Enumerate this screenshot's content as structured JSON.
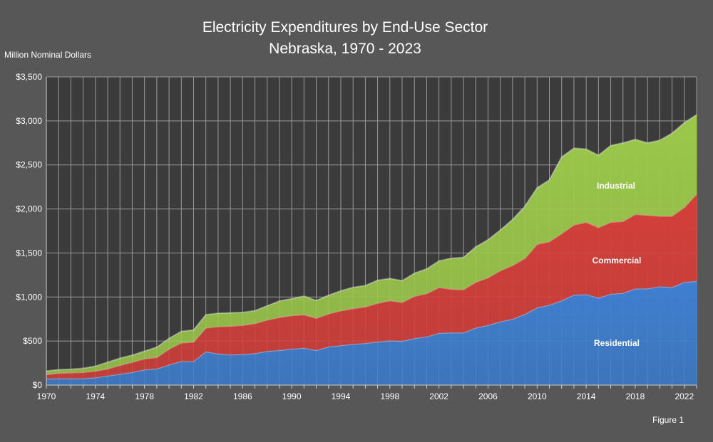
{
  "chart_data": {
    "type": "area",
    "stacked": true,
    "title": "Electricity Expenditures by End-Use Sector",
    "subtitle": "Nebraska, 1970 - 2023",
    "ylabel": "Million Nominal Dollars",
    "xlabel": "",
    "xlim": [
      1970,
      2023
    ],
    "ylim": [
      0,
      3500
    ],
    "x_ticks": [
      "1970",
      "1974",
      "1978",
      "1982",
      "1986",
      "1990",
      "1994",
      "1998",
      "2002",
      "2006",
      "2010",
      "2014",
      "2018",
      "2022"
    ],
    "y_ticks": [
      "$0",
      "$500",
      "$1,000",
      "$1,500",
      "$2,000",
      "$2,500",
      "$3,000",
      "$3,500"
    ],
    "grid": true,
    "legend": "labels inside areas",
    "footnote": "Figure 1",
    "x": [
      1970,
      1971,
      1972,
      1973,
      1974,
      1975,
      1976,
      1977,
      1978,
      1979,
      1980,
      1981,
      1982,
      1983,
      1984,
      1985,
      1986,
      1987,
      1988,
      1989,
      1990,
      1991,
      1992,
      1993,
      1994,
      1995,
      1996,
      1997,
      1998,
      1999,
      2000,
      2001,
      2002,
      2003,
      2004,
      2005,
      2006,
      2007,
      2008,
      2009,
      2010,
      2011,
      2012,
      2013,
      2014,
      2015,
      2016,
      2017,
      2018,
      2019,
      2020,
      2021,
      2022,
      2023
    ],
    "series": [
      {
        "name": "Residential",
        "color": "#3f7fd0",
        "values": [
          70,
          75,
          75,
          75,
          85,
          105,
          125,
          145,
          175,
          185,
          230,
          270,
          270,
          380,
          355,
          345,
          350,
          360,
          385,
          395,
          410,
          420,
          395,
          435,
          450,
          465,
          475,
          490,
          505,
          500,
          530,
          550,
          590,
          595,
          595,
          650,
          680,
          720,
          750,
          805,
          880,
          910,
          960,
          1025,
          1030,
          990,
          1035,
          1045,
          1095,
          1095,
          1120,
          1110,
          1170,
          1180
        ]
      },
      {
        "name": "Commercial",
        "color": "#d43f3a",
        "values": [
          50,
          60,
          65,
          70,
          75,
          80,
          100,
          115,
          125,
          130,
          180,
          210,
          220,
          270,
          310,
          325,
          330,
          340,
          355,
          375,
          380,
          380,
          365,
          375,
          395,
          405,
          415,
          440,
          455,
          440,
          480,
          490,
          520,
          495,
          490,
          520,
          540,
          580,
          610,
          635,
          720,
          720,
          760,
          795,
          820,
          800,
          815,
          815,
          845,
          835,
          800,
          810,
          850,
          990
        ]
      },
      {
        "name": "Industrial",
        "color": "#9bc84a",
        "values": [
          40,
          40,
          40,
          45,
          55,
          75,
          80,
          80,
          85,
          115,
          120,
          130,
          135,
          150,
          150,
          150,
          145,
          145,
          160,
          185,
          190,
          210,
          200,
          210,
          225,
          240,
          240,
          260,
          250,
          245,
          260,
          280,
          300,
          350,
          365,
          400,
          430,
          460,
          520,
          590,
          640,
          700,
          870,
          870,
          830,
          820,
          870,
          890,
          850,
          820,
          860,
          940,
          960,
          900
        ]
      }
    ]
  }
}
